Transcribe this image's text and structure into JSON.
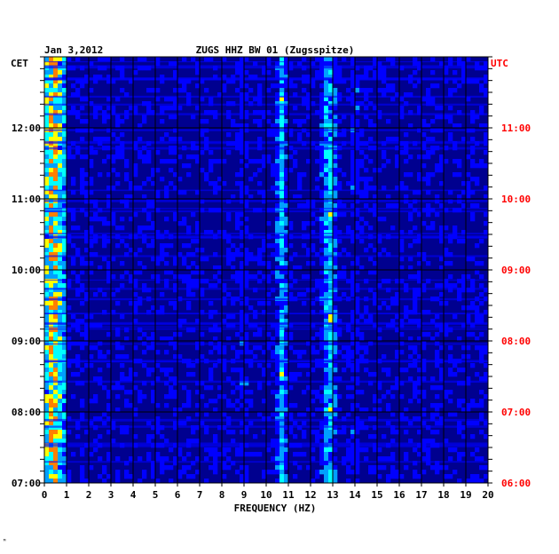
{
  "chart_data": {
    "type": "heatmap",
    "date": "Jan 3,2012",
    "title": "ZUGS HHZ BW 01 (Zugsspitze)",
    "xlabel": "FREQUENCY (HZ)",
    "left_axis_label": "CET",
    "right_axis_label": "UTC",
    "x_range": [
      0,
      20
    ],
    "x_ticks": [
      0,
      1,
      2,
      3,
      4,
      5,
      6,
      7,
      8,
      9,
      10,
      11,
      12,
      13,
      14,
      15,
      16,
      17,
      18,
      19,
      20
    ],
    "y_range_cet": [
      "07:00",
      "13:00"
    ],
    "left_ticks": [
      {
        "label": "12:00",
        "hour": 12
      },
      {
        "label": "11:00",
        "hour": 11
      },
      {
        "label": "10:00",
        "hour": 10
      },
      {
        "label": "09:00",
        "hour": 9
      },
      {
        "label": "08:00",
        "hour": 8
      },
      {
        "label": "07:00",
        "hour": 7
      }
    ],
    "right_ticks": [
      {
        "label": "11:00",
        "hour": 12
      },
      {
        "label": "10:00",
        "hour": 11
      },
      {
        "label": "09:00",
        "hour": 10
      },
      {
        "label": "08:00",
        "hour": 9
      },
      {
        "label": "07:00",
        "hour": 8
      },
      {
        "label": "06:00",
        "hour": 7
      }
    ],
    "grid": true,
    "colormap": [
      "#00007f",
      "#0000ff",
      "#00a0ff",
      "#00ffff",
      "#ffff00",
      "#ff7f00",
      "#ff0000"
    ],
    "strong_bands_hz": [
      {
        "freq": 0.4,
        "width": 0.6,
        "level": 0.85
      },
      {
        "freq": 9.0,
        "width": 0.15,
        "level": 0.35
      },
      {
        "freq": 10.7,
        "width": 0.25,
        "level": 0.5
      },
      {
        "freq": 12.85,
        "width": 0.35,
        "level": 0.55
      },
      {
        "freq": 14.0,
        "width": 0.2,
        "level": 0.3
      }
    ]
  },
  "colors": {
    "background": "#ffffff",
    "plot_background": "#00008f",
    "left_labels": "#000000",
    "right_labels": "#ff0000",
    "grid": "#000000"
  },
  "corner_mark": "ᴹ"
}
